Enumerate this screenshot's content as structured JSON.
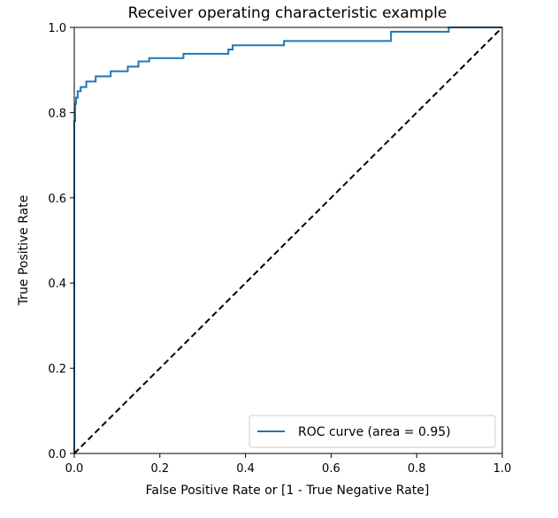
{
  "chart_data": {
    "type": "line",
    "title": "Receiver operating characteristic example",
    "xlabel": "False Positive Rate or [1 - True Negative Rate]",
    "ylabel": "True Positive Rate",
    "xlim": [
      0.0,
      1.0
    ],
    "ylim": [
      0.0,
      1.0
    ],
    "xticks": [
      "0.0",
      "0.2",
      "0.4",
      "0.6",
      "0.8",
      "1.0"
    ],
    "yticks": [
      "0.0",
      "0.2",
      "0.4",
      "0.6",
      "0.8",
      "1.0"
    ],
    "grid": false,
    "legend_position": "lower-right",
    "series": [
      {
        "name": "ROC curve (area = 0.95)",
        "color": "#1f77b4",
        "style": "solid",
        "x": [
          0.0,
          0.0,
          0.002,
          0.002,
          0.004,
          0.004,
          0.008,
          0.008,
          0.015,
          0.015,
          0.028,
          0.028,
          0.05,
          0.05,
          0.085,
          0.085,
          0.125,
          0.125,
          0.15,
          0.15,
          0.175,
          0.175,
          0.255,
          0.255,
          0.36,
          0.36,
          0.37,
          0.37,
          0.49,
          0.49,
          0.74,
          0.74,
          0.875,
          0.875,
          1.0
        ],
        "y": [
          0.0,
          0.78,
          0.78,
          0.82,
          0.82,
          0.835,
          0.835,
          0.85,
          0.85,
          0.86,
          0.86,
          0.873,
          0.873,
          0.885,
          0.885,
          0.897,
          0.897,
          0.908,
          0.908,
          0.92,
          0.92,
          0.928,
          0.928,
          0.938,
          0.938,
          0.948,
          0.948,
          0.958,
          0.958,
          0.968,
          0.968,
          0.99,
          0.99,
          1.0,
          1.0
        ]
      },
      {
        "color": "#000000",
        "style": "dashed",
        "x": [
          0.0,
          1.0
        ],
        "y": [
          0.0,
          1.0
        ]
      }
    ]
  }
}
